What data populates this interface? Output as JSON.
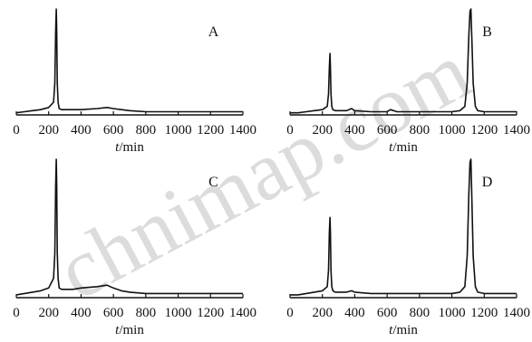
{
  "watermark": "chnimap.com",
  "chart_data": [
    {
      "type": "line",
      "panel_label": "A",
      "xlabel": "t/min",
      "xlim": [
        0,
        1400
      ],
      "xticks": [
        0,
        200,
        400,
        600,
        800,
        1000,
        1200,
        1400
      ],
      "grid": false,
      "series": [
        {
          "x": [
            0,
            50,
            100,
            150,
            200,
            230,
            238,
            243,
            247,
            250,
            253,
            258,
            265,
            280,
            300,
            350,
            400,
            500,
            560,
            600,
            650,
            700,
            800,
            900,
            1000,
            1100,
            1200,
            1300,
            1400
          ],
          "y": [
            0.02,
            0.03,
            0.04,
            0.05,
            0.07,
            0.12,
            0.3,
            0.78,
            1.0,
            0.78,
            0.3,
            0.12,
            0.06,
            0.05,
            0.05,
            0.05,
            0.05,
            0.06,
            0.07,
            0.06,
            0.05,
            0.04,
            0.03,
            0.03,
            0.03,
            0.03,
            0.03,
            0.03,
            0.03
          ]
        }
      ]
    },
    {
      "type": "line",
      "panel_label": "B",
      "xlabel": "t/min",
      "xlim": [
        0,
        1400
      ],
      "xticks": [
        0,
        200,
        400,
        600,
        800,
        1000,
        1200,
        1400
      ],
      "grid": false,
      "series": [
        {
          "x": [
            0,
            50,
            100,
            150,
            200,
            230,
            238,
            243,
            247,
            250,
            253,
            258,
            265,
            280,
            300,
            350,
            380,
            400,
            500,
            600,
            620,
            640,
            660,
            700,
            800,
            900,
            1000,
            1050,
            1080,
            1095,
            1105,
            1112,
            1118,
            1124,
            1132,
            1145,
            1160,
            1200,
            1300,
            1400
          ],
          "y": [
            0.02,
            0.02,
            0.03,
            0.04,
            0.05,
            0.08,
            0.2,
            0.45,
            0.58,
            0.45,
            0.2,
            0.08,
            0.05,
            0.04,
            0.04,
            0.04,
            0.06,
            0.04,
            0.03,
            0.03,
            0.05,
            0.04,
            0.03,
            0.03,
            0.03,
            0.03,
            0.03,
            0.04,
            0.08,
            0.3,
            0.75,
            0.98,
            1.0,
            0.7,
            0.3,
            0.08,
            0.04,
            0.03,
            0.03,
            0.03
          ]
        }
      ]
    },
    {
      "type": "line",
      "panel_label": "C",
      "xlabel": "t/min",
      "xlim": [
        0,
        1400
      ],
      "xticks": [
        0,
        200,
        400,
        600,
        800,
        1000,
        1200,
        1400
      ],
      "grid": false,
      "series": [
        {
          "x": [
            0,
            50,
            100,
            150,
            200,
            230,
            238,
            243,
            247,
            250,
            253,
            258,
            265,
            280,
            300,
            350,
            400,
            500,
            560,
            600,
            650,
            700,
            800,
            900,
            1000,
            1100,
            1200,
            1300,
            1400
          ],
          "y": [
            0.02,
            0.03,
            0.04,
            0.05,
            0.07,
            0.14,
            0.32,
            0.8,
            1.0,
            0.8,
            0.32,
            0.14,
            0.07,
            0.06,
            0.06,
            0.06,
            0.07,
            0.08,
            0.09,
            0.07,
            0.05,
            0.04,
            0.03,
            0.03,
            0.03,
            0.03,
            0.03,
            0.03,
            0.03
          ]
        }
      ]
    },
    {
      "type": "line",
      "panel_label": "D",
      "xlabel": "t/min",
      "xlim": [
        0,
        1400
      ],
      "xticks": [
        0,
        200,
        400,
        600,
        800,
        1000,
        1200,
        1400
      ],
      "grid": false,
      "series": [
        {
          "x": [
            0,
            50,
            100,
            150,
            200,
            230,
            238,
            243,
            247,
            250,
            253,
            258,
            265,
            280,
            300,
            350,
            380,
            400,
            500,
            600,
            700,
            800,
            900,
            1000,
            1050,
            1080,
            1095,
            1105,
            1112,
            1118,
            1124,
            1132,
            1145,
            1160,
            1200,
            1300,
            1400
          ],
          "y": [
            0.02,
            0.02,
            0.03,
            0.04,
            0.05,
            0.08,
            0.2,
            0.47,
            0.58,
            0.47,
            0.2,
            0.08,
            0.05,
            0.04,
            0.04,
            0.04,
            0.05,
            0.04,
            0.03,
            0.03,
            0.03,
            0.03,
            0.03,
            0.03,
            0.04,
            0.08,
            0.3,
            0.75,
            0.98,
            1.0,
            0.7,
            0.3,
            0.08,
            0.04,
            0.03,
            0.03,
            0.03
          ]
        }
      ]
    }
  ]
}
